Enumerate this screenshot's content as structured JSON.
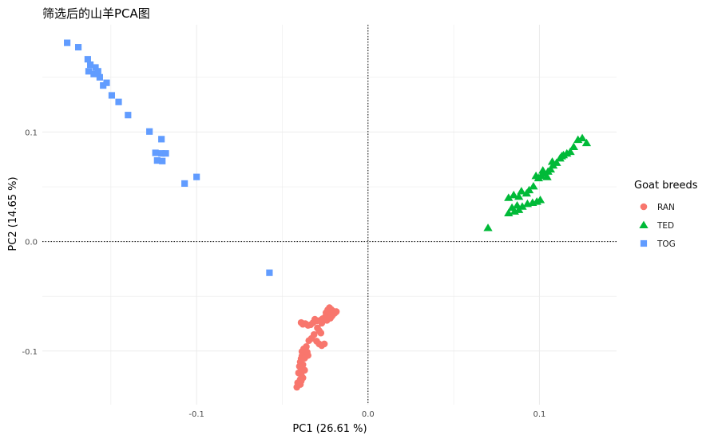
{
  "chart_data": {
    "type": "scatter",
    "title": "筛选后的山羊PCA图",
    "xlabel": "PC1 (26.61 %)",
    "ylabel": "PC2 (14.65 %)",
    "xlim": [
      -0.19,
      0.145
    ],
    "ylim": [
      -0.149,
      0.198
    ],
    "x_ticks": [
      -0.1,
      0.0,
      0.1
    ],
    "x_tick_labels": [
      "-0.1",
      "0.0",
      "0.1"
    ],
    "y_ticks": [
      -0.1,
      0.0,
      0.1
    ],
    "y_tick_labels": [
      "-0.1",
      "0.0",
      "0.1"
    ],
    "reference_lines": {
      "x": 0,
      "y": 0,
      "style": "dotted"
    },
    "grid": true,
    "legend": {
      "title": "Goat breeds",
      "position": "right"
    },
    "series": [
      {
        "name": "RAN",
        "color": "#F8766D",
        "shape": "circle",
        "points": [
          [
            -0.0205,
            -0.0635
          ],
          [
            -0.0215,
            -0.062
          ],
          [
            -0.0195,
            -0.0655
          ],
          [
            -0.0185,
            -0.064
          ],
          [
            -0.0225,
            -0.0605
          ],
          [
            -0.0235,
            -0.0625
          ],
          [
            -0.0245,
            -0.065
          ],
          [
            -0.023,
            -0.067
          ],
          [
            -0.021,
            -0.068
          ],
          [
            -0.025,
            -0.069
          ],
          [
            -0.0265,
            -0.0705
          ],
          [
            -0.028,
            -0.072
          ],
          [
            -0.027,
            -0.0745
          ],
          [
            -0.03,
            -0.0725
          ],
          [
            -0.031,
            -0.071
          ],
          [
            -0.032,
            -0.074
          ],
          [
            -0.0335,
            -0.076
          ],
          [
            -0.035,
            -0.0765
          ],
          [
            -0.0365,
            -0.075
          ],
          [
            -0.038,
            -0.0755
          ],
          [
            -0.039,
            -0.074
          ],
          [
            -0.0295,
            -0.079
          ],
          [
            -0.0285,
            -0.0815
          ],
          [
            -0.0275,
            -0.0835
          ],
          [
            -0.0315,
            -0.085
          ],
          [
            -0.033,
            -0.0885
          ],
          [
            -0.0345,
            -0.0905
          ],
          [
            -0.03,
            -0.091
          ],
          [
            -0.0285,
            -0.0935
          ],
          [
            -0.027,
            -0.095
          ],
          [
            -0.0255,
            -0.0935
          ],
          [
            -0.036,
            -0.096
          ],
          [
            -0.0375,
            -0.098
          ],
          [
            -0.0385,
            -0.1005
          ],
          [
            -0.0365,
            -0.102
          ],
          [
            -0.0385,
            -0.1045
          ],
          [
            -0.039,
            -0.107
          ],
          [
            -0.037,
            -0.1065
          ],
          [
            -0.035,
            -0.104
          ],
          [
            -0.0395,
            -0.11
          ],
          [
            -0.038,
            -0.1125
          ],
          [
            -0.04,
            -0.114
          ],
          [
            -0.0385,
            -0.116
          ],
          [
            -0.037,
            -0.1175
          ],
          [
            -0.0405,
            -0.12
          ],
          [
            -0.039,
            -0.1215
          ],
          [
            -0.038,
            -0.1245
          ],
          [
            -0.0395,
            -0.126
          ],
          [
            -0.041,
            -0.129
          ],
          [
            -0.0395,
            -0.1305
          ],
          [
            -0.0415,
            -0.133
          ],
          [
            -0.039,
            -0.1275
          ],
          [
            -0.0355,
            -0.101
          ],
          [
            -0.024,
            -0.072
          ],
          [
            -0.022,
            -0.07
          ]
        ]
      },
      {
        "name": "TED",
        "color": "#00BA38",
        "shape": "triangle",
        "points": [
          [
            0.07,
            0.0125
          ],
          [
            0.082,
            0.026
          ],
          [
            0.0855,
            0.0275
          ],
          [
            0.088,
            0.029
          ],
          [
            0.084,
            0.031
          ],
          [
            0.087,
            0.033
          ],
          [
            0.09,
            0.032
          ],
          [
            0.093,
            0.0345
          ],
          [
            0.096,
            0.0355
          ],
          [
            0.0985,
            0.0365
          ],
          [
            0.1005,
            0.038
          ],
          [
            0.082,
            0.04
          ],
          [
            0.085,
            0.0425
          ],
          [
            0.088,
            0.041
          ],
          [
            0.0895,
            0.046
          ],
          [
            0.0925,
            0.044
          ],
          [
            0.094,
            0.047
          ],
          [
            0.0965,
            0.0505
          ],
          [
            0.0995,
            0.058
          ],
          [
            0.101,
            0.06
          ],
          [
            0.103,
            0.062
          ],
          [
            0.105,
            0.064
          ],
          [
            0.1065,
            0.066
          ],
          [
            0.108,
            0.0695
          ],
          [
            0.11,
            0.072
          ],
          [
            0.112,
            0.076
          ],
          [
            0.114,
            0.079
          ],
          [
            0.116,
            0.0805
          ],
          [
            0.118,
            0.082
          ],
          [
            0.12,
            0.0865
          ],
          [
            0.1225,
            0.093
          ],
          [
            0.125,
            0.0945
          ],
          [
            0.1275,
            0.09
          ],
          [
            0.1045,
            0.059
          ],
          [
            0.1075,
            0.073
          ],
          [
            0.113,
            0.078
          ],
          [
            0.098,
            0.06
          ],
          [
            0.102,
            0.065
          ]
        ]
      },
      {
        "name": "TOG",
        "color": "#619CFF",
        "shape": "square",
        "points": [
          [
            -0.1755,
            0.1815
          ],
          [
            -0.169,
            0.1775
          ],
          [
            -0.1635,
            0.1665
          ],
          [
            -0.162,
            0.1615
          ],
          [
            -0.159,
            0.159
          ],
          [
            -0.163,
            0.1555
          ],
          [
            -0.16,
            0.153
          ],
          [
            -0.1575,
            0.1555
          ],
          [
            -0.1565,
            0.15
          ],
          [
            -0.1545,
            0.1425
          ],
          [
            -0.1525,
            0.145
          ],
          [
            -0.1495,
            0.1335
          ],
          [
            -0.1455,
            0.1275
          ],
          [
            -0.14,
            0.1155
          ],
          [
            -0.1275,
            0.1005
          ],
          [
            -0.1205,
            0.0935
          ],
          [
            -0.124,
            0.081
          ],
          [
            -0.1205,
            0.0805
          ],
          [
            -0.118,
            0.0805
          ],
          [
            -0.123,
            0.074
          ],
          [
            -0.12,
            0.0735
          ],
          [
            -0.107,
            0.053
          ],
          [
            -0.1,
            0.059
          ],
          [
            -0.0575,
            -0.0285
          ]
        ]
      }
    ]
  }
}
